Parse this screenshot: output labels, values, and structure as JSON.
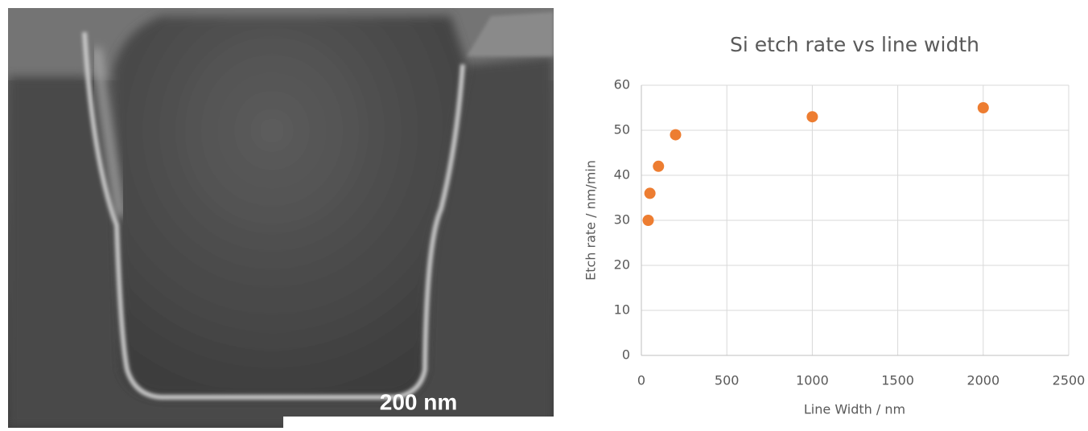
{
  "image": {
    "scale_bar_label": "200 nm"
  },
  "chart_data": {
    "type": "scatter",
    "title": "Si etch rate vs line width",
    "x_label": "Line Width / nm",
    "y_label": "Etch rate / nm/min",
    "x": [
      40,
      50,
      100,
      200,
      1000,
      2000
    ],
    "values": [
      30,
      36,
      42,
      49,
      53,
      55
    ],
    "color": "#ed7d31",
    "xlim": [
      0,
      2500
    ],
    "xticks": [
      0,
      500,
      1000,
      1500,
      2000,
      2500
    ],
    "ylim": [
      0,
      60
    ],
    "yticks": [
      0,
      10,
      20,
      30,
      40,
      50,
      60
    ],
    "grid": true
  }
}
